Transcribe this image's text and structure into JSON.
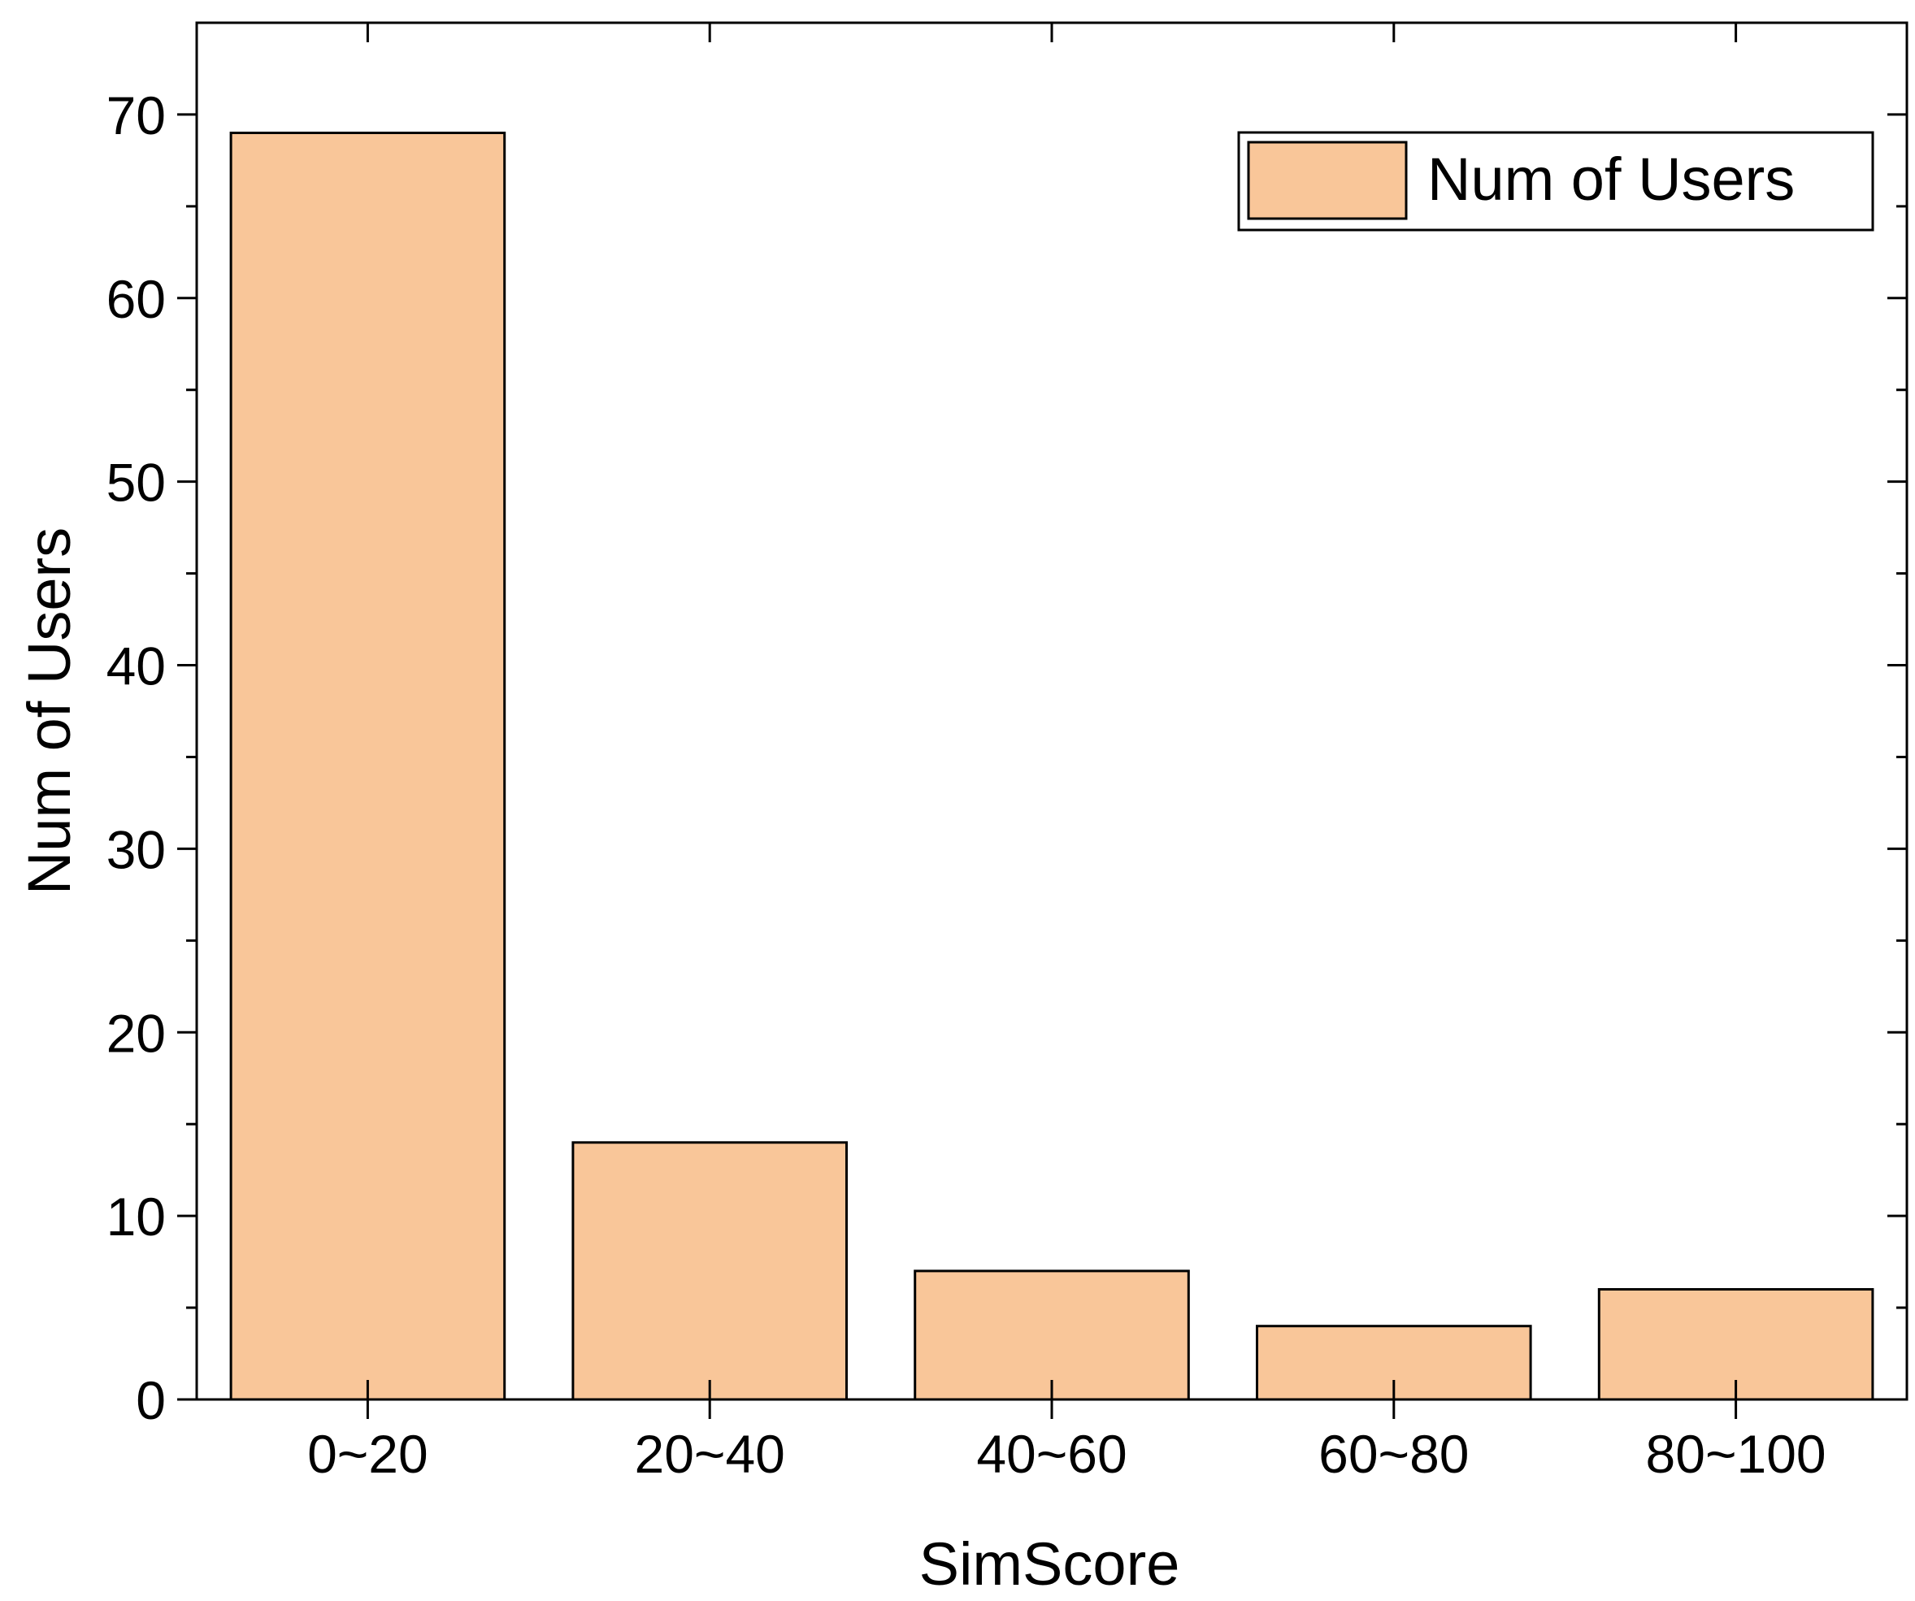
{
  "chart_data": {
    "type": "bar",
    "title": "",
    "xlabel": "SimScore",
    "ylabel": "Num of Users",
    "categories": [
      "0~20",
      "20~40",
      "40~60",
      "60~80",
      "80~100"
    ],
    "series": [
      {
        "name": "Num of Users",
        "values": [
          69,
          14,
          7,
          4,
          6
        ]
      }
    ],
    "ylim": [
      0,
      75
    ],
    "y_ticks": [
      0,
      10,
      20,
      30,
      40,
      50,
      60,
      70
    ],
    "y_minor_ticks": [
      5,
      15,
      25,
      35,
      45,
      55,
      65
    ],
    "grid": false,
    "legend_position": "top-right",
    "bar_color": "#F9C699",
    "bar_edge_color": "#000000"
  }
}
